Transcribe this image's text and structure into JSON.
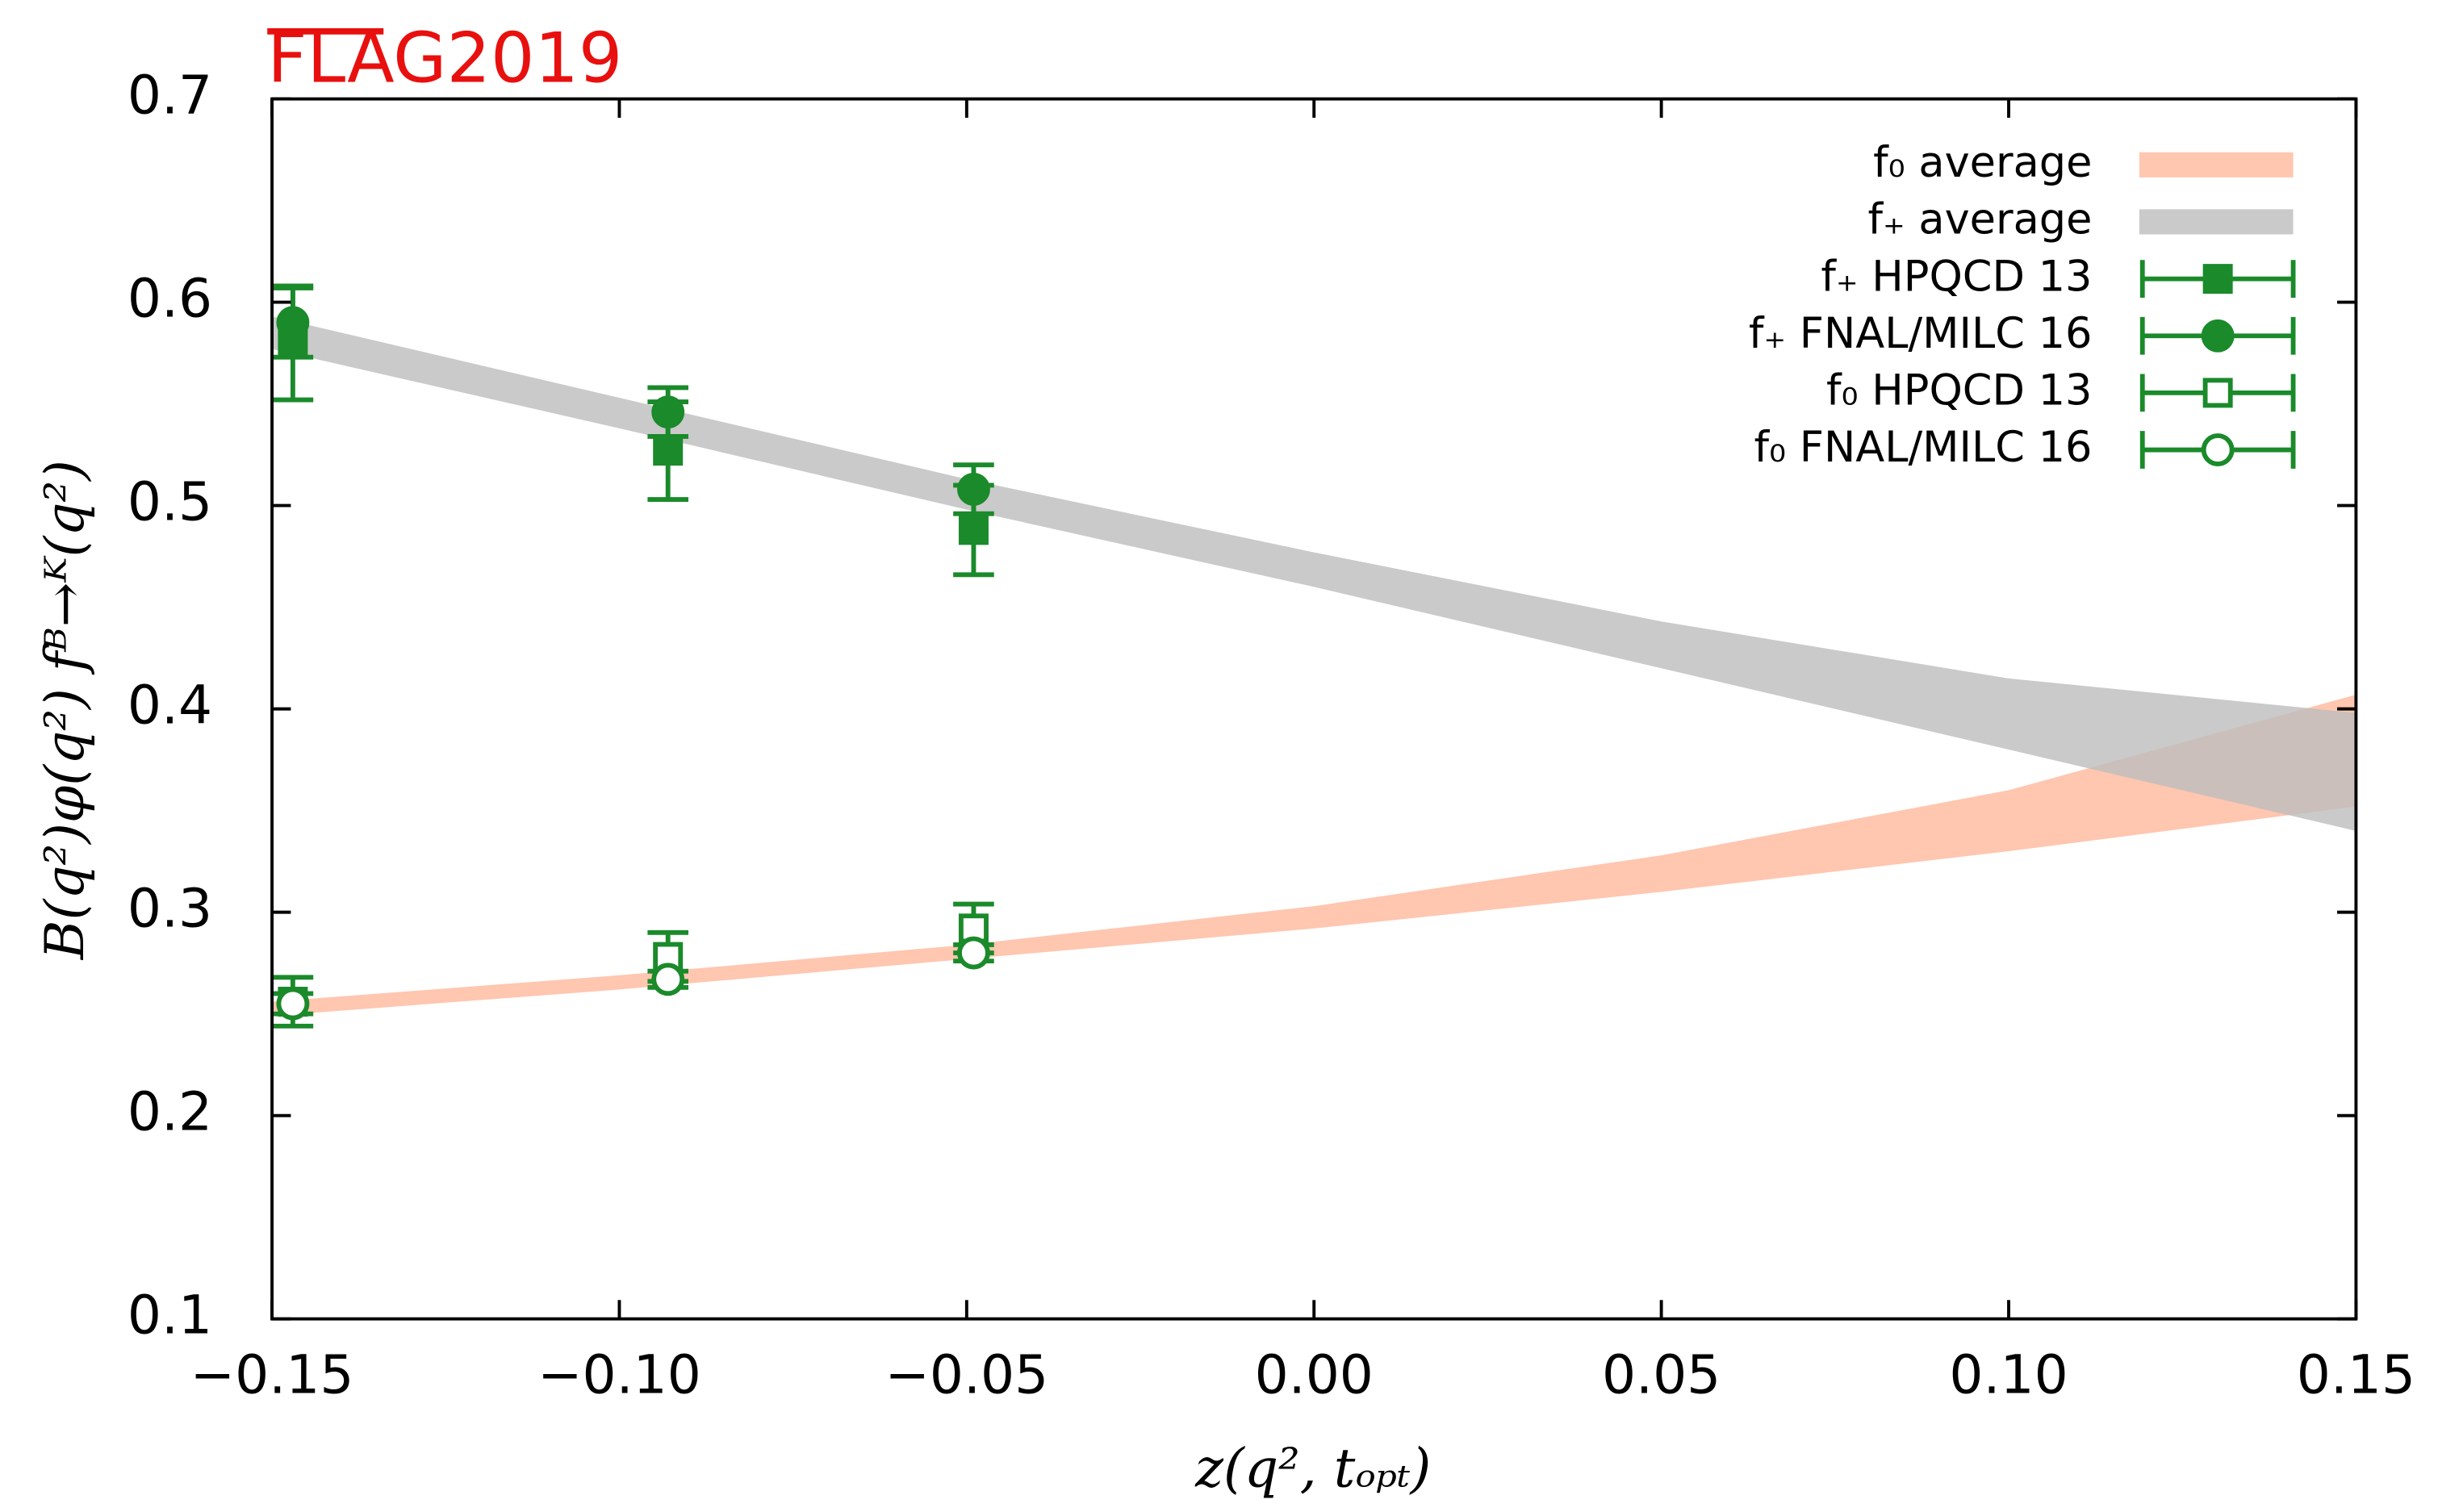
{
  "chart_data": {
    "type": "scatter",
    "title": "FLAG2019",
    "xlabel": "z(q², tₒₚₜ)",
    "ylabel": "B(q²)φ(q²) fᴮ→ᴷ(q²)",
    "xlim": [
      -0.15,
      0.15
    ],
    "ylim": [
      0.1,
      0.7
    ],
    "xticks": [
      {
        "value": -0.15,
        "label": "−0.15"
      },
      {
        "value": -0.1,
        "label": "−0.10"
      },
      {
        "value": -0.05,
        "label": "−0.05"
      },
      {
        "value": 0,
        "label": "0.00"
      },
      {
        "value": 0.05,
        "label": "0.05"
      },
      {
        "value": 0.1,
        "label": "0.10"
      },
      {
        "value": 0.15,
        "label": "0.15"
      }
    ],
    "yticks": [
      0.1,
      0.2,
      0.3,
      0.4,
      0.5,
      0.6,
      0.7
    ],
    "legend": "upper right",
    "series": [
      {
        "name": "f₀ average",
        "color": "#ffb89c",
        "x": [
          -0.15,
          -0.1,
          -0.05,
          0,
          0.05,
          0.1,
          0.15
        ],
        "lower": [
          0.249,
          0.262,
          0.277,
          0.292,
          0.31,
          0.33,
          0.352
        ],
        "upper": [
          0.256,
          0.269,
          0.284,
          0.303,
          0.328,
          0.36,
          0.407
        ]
      },
      {
        "name": "f₊ average",
        "color": "#bdbdbd",
        "x": [
          -0.15,
          -0.1,
          -0.05,
          0,
          0.05,
          0.1,
          0.15
        ],
        "lower": [
          0.577,
          0.538,
          0.498,
          0.46,
          0.42,
          0.38,
          0.34
        ],
        "upper": [
          0.593,
          0.553,
          0.513,
          0.477,
          0.443,
          0.415,
          0.398
        ]
      },
      {
        "name": "f₊ HPQCD 13",
        "color": "#1a8a2a",
        "marker": "square",
        "filled": true,
        "x": [
          -0.147,
          -0.093,
          -0.049
        ],
        "values": [
          0.58,
          0.527,
          0.488
        ],
        "errors": [
          0.028,
          0.024,
          0.022
        ]
      },
      {
        "name": "f₊ FNAL/MILC 16",
        "color": "#1a8a2a",
        "marker": "circle",
        "filled": true,
        "x": [
          -0.147,
          -0.093,
          -0.049
        ],
        "values": [
          0.59,
          0.546,
          0.508
        ],
        "errors": [
          0.017,
          0.012,
          0.012
        ]
      },
      {
        "name": "f₀ HPQCD 13",
        "color": "#1a8a2a",
        "marker": "square",
        "filled": false,
        "x": [
          -0.147,
          -0.093,
          -0.049
        ],
        "values": [
          0.256,
          0.278,
          0.292
        ],
        "errors": [
          0.012,
          0.012,
          0.012
        ]
      },
      {
        "name": "f₀ FNAL/MILC 16",
        "color": "#1a8a2a",
        "marker": "circle",
        "filled": false,
        "x": [
          -0.147,
          -0.093,
          -0.049
        ],
        "values": [
          0.255,
          0.267,
          0.28
        ],
        "errors": [
          0.005,
          0.004,
          0.004
        ]
      }
    ]
  }
}
